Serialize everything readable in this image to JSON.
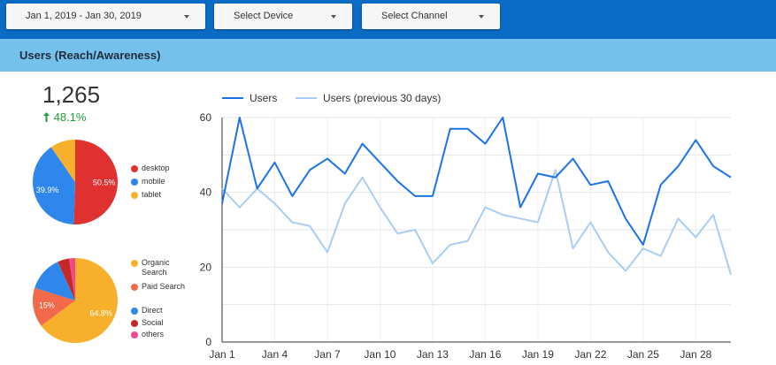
{
  "filters": {
    "date_range": "Jan 1, 2019 - Jan 30, 2019",
    "device": "Select Device",
    "channel": "Select Channel"
  },
  "section": {
    "title": "Users (Reach/Awareness)"
  },
  "scorecard": {
    "value": "1,265",
    "delta": "48.1%",
    "delta_color": "#1f9d3b"
  },
  "device_pie": {
    "slices": [
      {
        "name": "desktop",
        "value": 50.5,
        "label": "50.5%",
        "color": "#e03131"
      },
      {
        "name": "mobile",
        "value": 39.9,
        "label": "39.9%",
        "color": "#2f86eb"
      },
      {
        "name": "tablet",
        "value": 9.6,
        "label": "",
        "color": "#f6b02c"
      }
    ]
  },
  "channel_pie": {
    "slices": [
      {
        "name": "Organic Search",
        "value": 64.8,
        "label": "64.8%",
        "color": "#f6b02c"
      },
      {
        "name": "Paid Search",
        "value": 15,
        "label": "15%",
        "color": "#f36a4a"
      },
      {
        "name": "Direct",
        "value": 13.5,
        "label": "",
        "color": "#2f86eb"
      },
      {
        "name": "Social",
        "value": 4.4,
        "label": "",
        "color": "#c62828"
      },
      {
        "name": "others",
        "value": 2.3,
        "label": "",
        "color": "#ee4a8b"
      }
    ]
  },
  "chart_data": {
    "type": "line",
    "x": [
      "Jan 1",
      "Jan 2",
      "Jan 3",
      "Jan 4",
      "Jan 5",
      "Jan 6",
      "Jan 7",
      "Jan 8",
      "Jan 9",
      "Jan 10",
      "Jan 11",
      "Jan 12",
      "Jan 13",
      "Jan 14",
      "Jan 15",
      "Jan 16",
      "Jan 17",
      "Jan 18",
      "Jan 19",
      "Jan 20",
      "Jan 21",
      "Jan 22",
      "Jan 23",
      "Jan 24",
      "Jan 25",
      "Jan 26",
      "Jan 27",
      "Jan 28",
      "Jan 29",
      "Jan 30"
    ],
    "x_tick_labels": [
      "Jan 1",
      "Jan 4",
      "Jan 7",
      "Jan 10",
      "Jan 13",
      "Jan 16",
      "Jan 19",
      "Jan 22",
      "Jan 25",
      "Jan 28"
    ],
    "ylim": [
      0,
      60
    ],
    "y_ticks": [
      "0",
      "20",
      "40",
      "60"
    ],
    "grid": true,
    "legend": "top-left",
    "series": [
      {
        "name": "Users",
        "color": "#1a73e8",
        "values": [
          37,
          60,
          41,
          48,
          39,
          46,
          49,
          45,
          53,
          48,
          43,
          39,
          39,
          57,
          57,
          53,
          60,
          36,
          45,
          44,
          49,
          42,
          43,
          33,
          26,
          42,
          47,
          54,
          47,
          44
        ]
      },
      {
        "name": "Users (previous 30 days)",
        "color": "#a9cdf3",
        "values": [
          41,
          36,
          41,
          37,
          32,
          31,
          24,
          37,
          44,
          36,
          29,
          30,
          21,
          26,
          27,
          36,
          34,
          33,
          32,
          46,
          25,
          32,
          24,
          19,
          25,
          23,
          33,
          28,
          34,
          18
        ]
      }
    ]
  }
}
